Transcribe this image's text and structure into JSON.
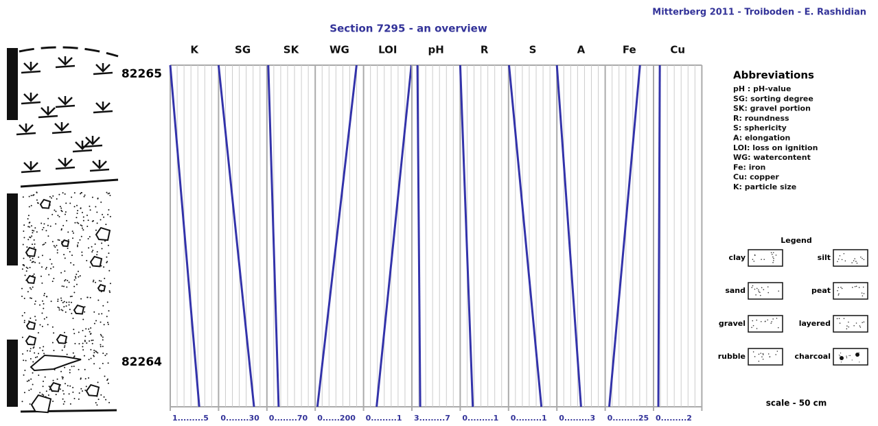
{
  "header": {
    "credit": "Mitterberg 2011 - Troiboden - E. Rashidian",
    "title": "Section 7295 - an overview"
  },
  "samples": [
    "82265",
    "82264"
  ],
  "panels": [
    {
      "name": "K",
      "scale": {
        "label": "1.........5",
        "min": 1,
        "max": 5
      },
      "top": 1.0,
      "bottom": 3.4
    },
    {
      "name": "SG",
      "scale": {
        "label": "0........30",
        "min": 0,
        "max": 30
      },
      "top": 0,
      "bottom": 22
    },
    {
      "name": "SK",
      "scale": {
        "label": "0........70",
        "min": 0,
        "max": 70
      },
      "top": 2,
      "bottom": 17
    },
    {
      "name": "WG",
      "scale": {
        "label": "0......200",
        "min": 0,
        "max": 200
      },
      "top": 171,
      "bottom": 9
    },
    {
      "name": "LOI",
      "scale": {
        "label": "0.........1",
        "min": 0,
        "max": 1
      },
      "top": 0.99,
      "bottom": 0.27
    },
    {
      "name": "pH",
      "scale": {
        "label": "3.........7",
        "min": 3,
        "max": 7
      },
      "top": 3.46,
      "bottom": 3.69
    },
    {
      "name": "R",
      "scale": {
        "label": "0.........1",
        "min": 0,
        "max": 1
      },
      "top": 0,
      "bottom": 0.26
    },
    {
      "name": "S",
      "scale": {
        "label": "0.........1",
        "min": 0,
        "max": 1
      },
      "top": 0.01,
      "bottom": 0.68
    },
    {
      "name": "A",
      "scale": {
        "label": "0.........3",
        "min": 0,
        "max": 3
      },
      "top": 0,
      "bottom": 1.5
    },
    {
      "name": "Fe",
      "scale": {
        "label": "0.........25",
        "min": 0,
        "max": 25
      },
      "top": 18,
      "bottom": 2.1
    },
    {
      "name": "Cu",
      "scale": {
        "label": "0.........2",
        "min": 0,
        "max": 2
      },
      "top": 0.26,
      "bottom": 0.2
    }
  ],
  "abbreviations": {
    "title": "Abbreviations",
    "items": [
      "pH : pH-value",
      "SG: sorting degree",
      "SK: gravel portion",
      "R: roundness",
      "S: sphericity",
      "A: elongation",
      "LOI: loss on ignition",
      "WG: watercontent",
      "Fe: iron",
      "Cu: copper",
      "K: particle size"
    ]
  },
  "legend": {
    "title": "Legend",
    "items": [
      "clay",
      "silt",
      "sand",
      "peat",
      "gravel",
      "layered",
      "rubble",
      "charcoal"
    ]
  },
  "scale_note": "scale - 50 cm"
}
